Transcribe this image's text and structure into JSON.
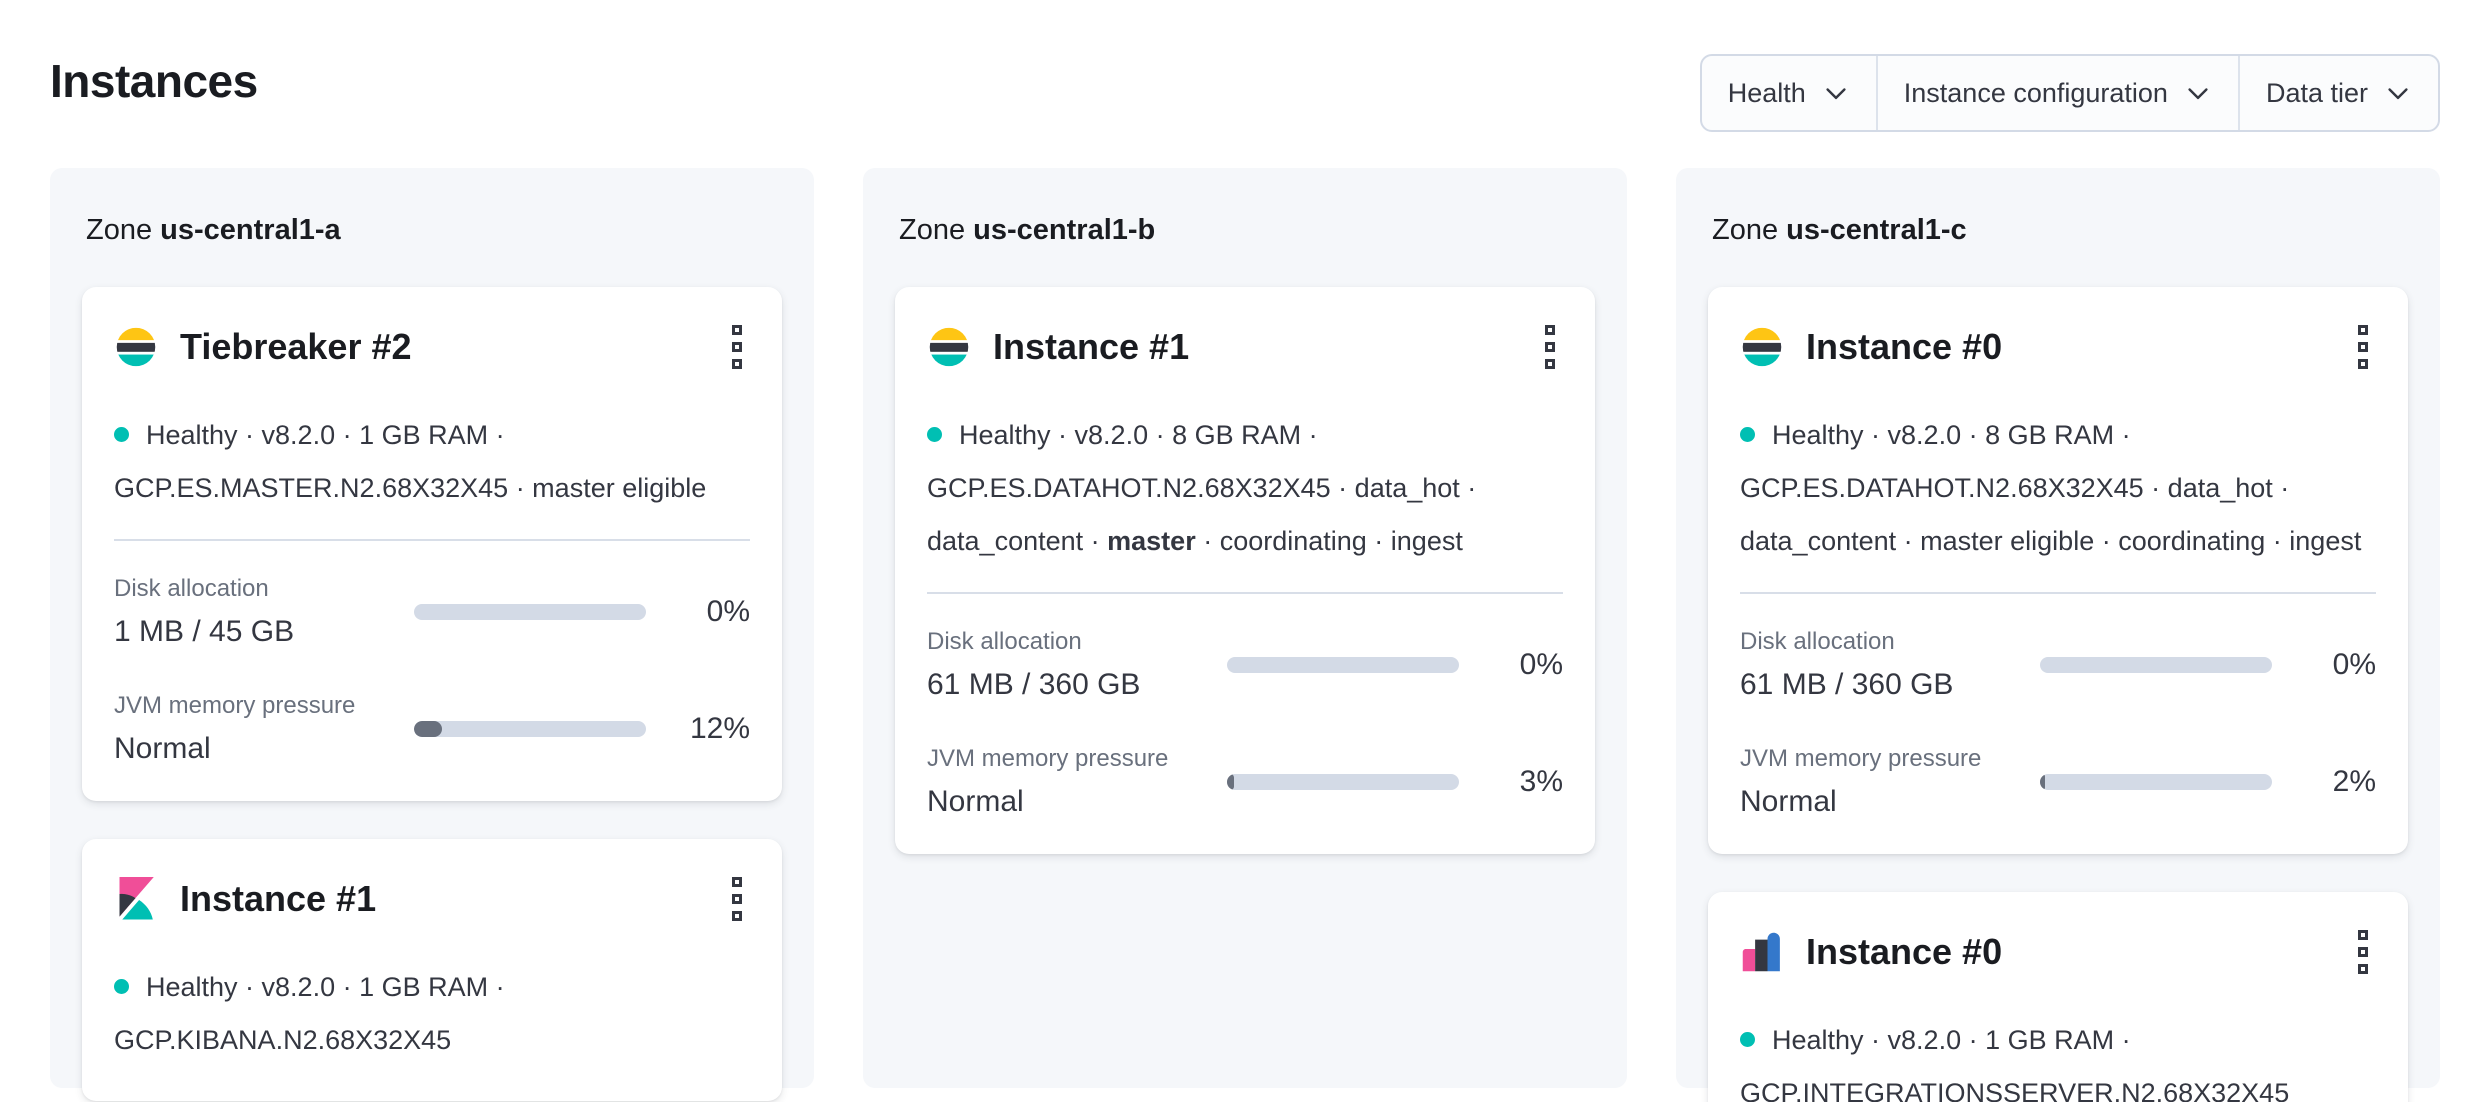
{
  "page_title": "Instances",
  "filters": [
    {
      "label": "Health",
      "icon": "chevron-down-icon"
    },
    {
      "label": "Instance configuration",
      "icon": "chevron-down-icon"
    },
    {
      "label": "Data tier",
      "icon": "chevron-down-icon"
    }
  ],
  "colors": {
    "healthy_dot": "#00BFB3",
    "elastic_yellow": "#FEC514",
    "elastic_dark": "#343741",
    "elastic_teal": "#00BFB3",
    "kibana_pink": "#F04E98",
    "integrations_blue": "#3478CB",
    "bar_track": "#D3DAE6",
    "bar_fill": "#69707D",
    "panel_bg": "#F5F7FA"
  },
  "zones": [
    {
      "zone_word": "Zone",
      "name": "us-central1-a",
      "cards": [
        {
          "icon": "elasticsearch-logo",
          "title": "Tiebreaker #2",
          "health": "Healthy",
          "menu_icon": "kebab-vertical-icon",
          "meta_lines": [
            "Healthy · v8.2.0 · 1 GB RAM ·",
            "GCP.ES.MASTER.N2.68X32X45 · master eligible"
          ],
          "metrics": [
            {
              "label": "Disk allocation",
              "value": "1 MB / 45 GB",
              "percent": 0,
              "percent_label": "0%"
            },
            {
              "label": "JVM memory pressure",
              "value": "Normal",
              "percent": 12,
              "percent_label": "12%"
            }
          ]
        },
        {
          "icon": "kibana-logo",
          "title": "Instance #1",
          "health": "Healthy",
          "menu_icon": "kebab-vertical-icon",
          "meta_lines": [
            "Healthy · v8.2.0 · 1 GB RAM ·",
            "GCP.KIBANA.N2.68X32X45"
          ],
          "metrics": []
        }
      ]
    },
    {
      "zone_word": "Zone",
      "name": "us-central1-b",
      "cards": [
        {
          "icon": "elasticsearch-logo",
          "title": "Instance #1",
          "health": "Healthy",
          "menu_icon": "kebab-vertical-icon",
          "meta_lines": [
            "Healthy · v8.2.0 · 8 GB RAM ·",
            "GCP.ES.DATAHOT.N2.68X32X45 · data_hot ·",
            "data_content · **master** · coordinating · ingest"
          ],
          "metrics": [
            {
              "label": "Disk allocation",
              "value": "61 MB / 360 GB",
              "percent": 0,
              "percent_label": "0%"
            },
            {
              "label": "JVM memory pressure",
              "value": "Normal",
              "percent": 3,
              "percent_label": "3%"
            }
          ]
        }
      ]
    },
    {
      "zone_word": "Zone",
      "name": "us-central1-c",
      "cards": [
        {
          "icon": "elasticsearch-logo",
          "title": "Instance #0",
          "health": "Healthy",
          "menu_icon": "kebab-vertical-icon",
          "meta_lines": [
            "Healthy · v8.2.0 · 8 GB RAM ·",
            "GCP.ES.DATAHOT.N2.68X32X45 · data_hot ·",
            "data_content · master eligible · coordinating · ingest"
          ],
          "metrics": [
            {
              "label": "Disk allocation",
              "value": "61 MB / 360 GB",
              "percent": 0,
              "percent_label": "0%"
            },
            {
              "label": "JVM memory pressure",
              "value": "Normal",
              "percent": 2,
              "percent_label": "2%"
            }
          ]
        },
        {
          "icon": "integrations-server-logo",
          "title": "Instance #0",
          "health": "Healthy",
          "menu_icon": "kebab-vertical-icon",
          "meta_lines": [
            "Healthy · v8.2.0 · 1 GB RAM ·",
            "GCP.INTEGRATIONSSERVER.N2.68X32X45"
          ],
          "metrics": []
        }
      ]
    }
  ]
}
